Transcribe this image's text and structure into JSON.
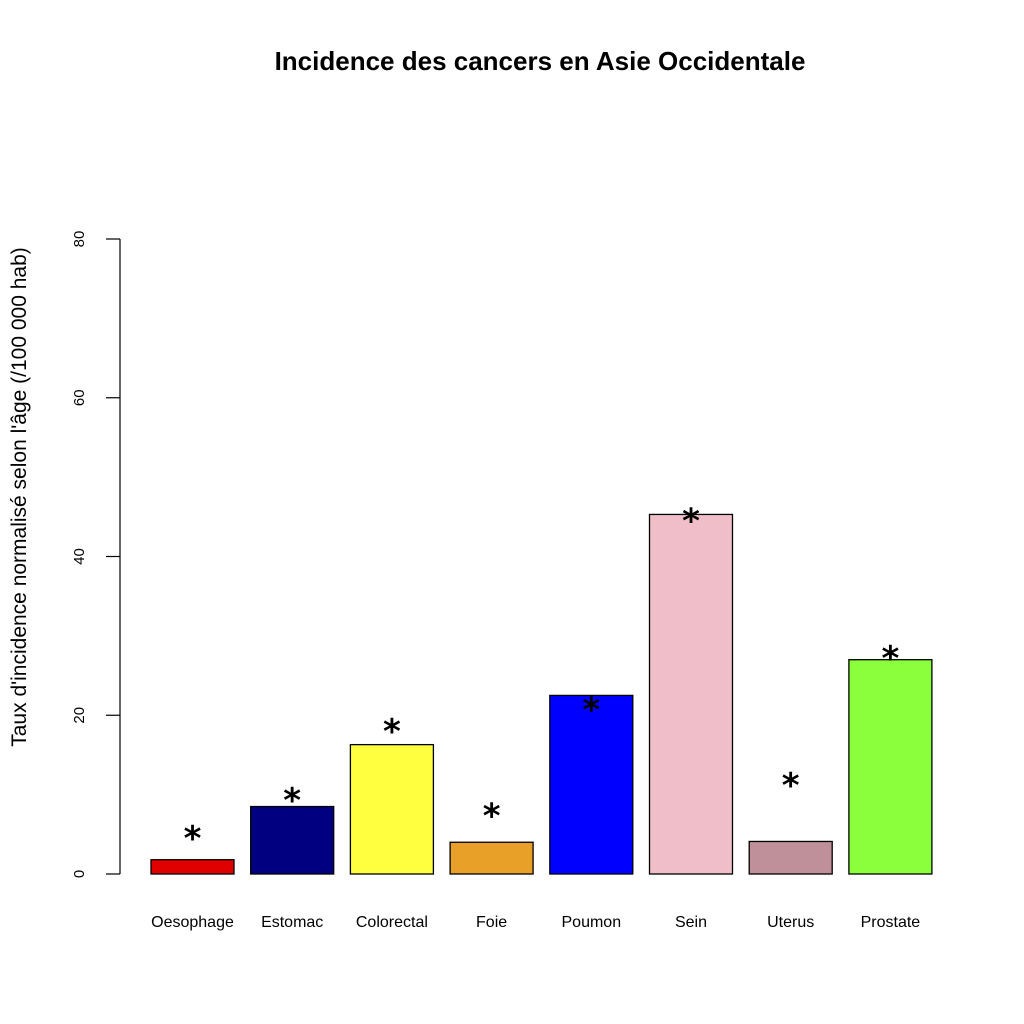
{
  "chart_data": {
    "type": "bar",
    "title": "Incidence des cancers en Asie Occidentale",
    "xlabel": "",
    "ylabel": "Taux d'incidence normalisé selon l'âge (/100 000 hab)",
    "ylim": [
      0,
      80
    ],
    "yticks": [
      "0",
      "20",
      "40",
      "60",
      "80"
    ],
    "grid": false,
    "categories": [
      "Oesophage",
      "Estomac",
      "Colorectal",
      "Foie",
      "Poumon",
      "Sein",
      "Uterus",
      "Prostate"
    ],
    "values": [
      1.8,
      8.5,
      16.3,
      4.0,
      22.5,
      45.3,
      4.1,
      27.0
    ],
    "colors": [
      "#e00000",
      "#000080",
      "#ffff40",
      "#e8a028",
      "#0000ff",
      "#efbec8",
      "#c0909a",
      "#8cff3c"
    ],
    "markers": [
      "*",
      "*",
      "*",
      "*",
      "*",
      "*",
      "*",
      "*"
    ],
    "marker_values": [
      5.8,
      10.6,
      19.3,
      8.6,
      22.0,
      45.8,
      12.5,
      28.5
    ]
  }
}
